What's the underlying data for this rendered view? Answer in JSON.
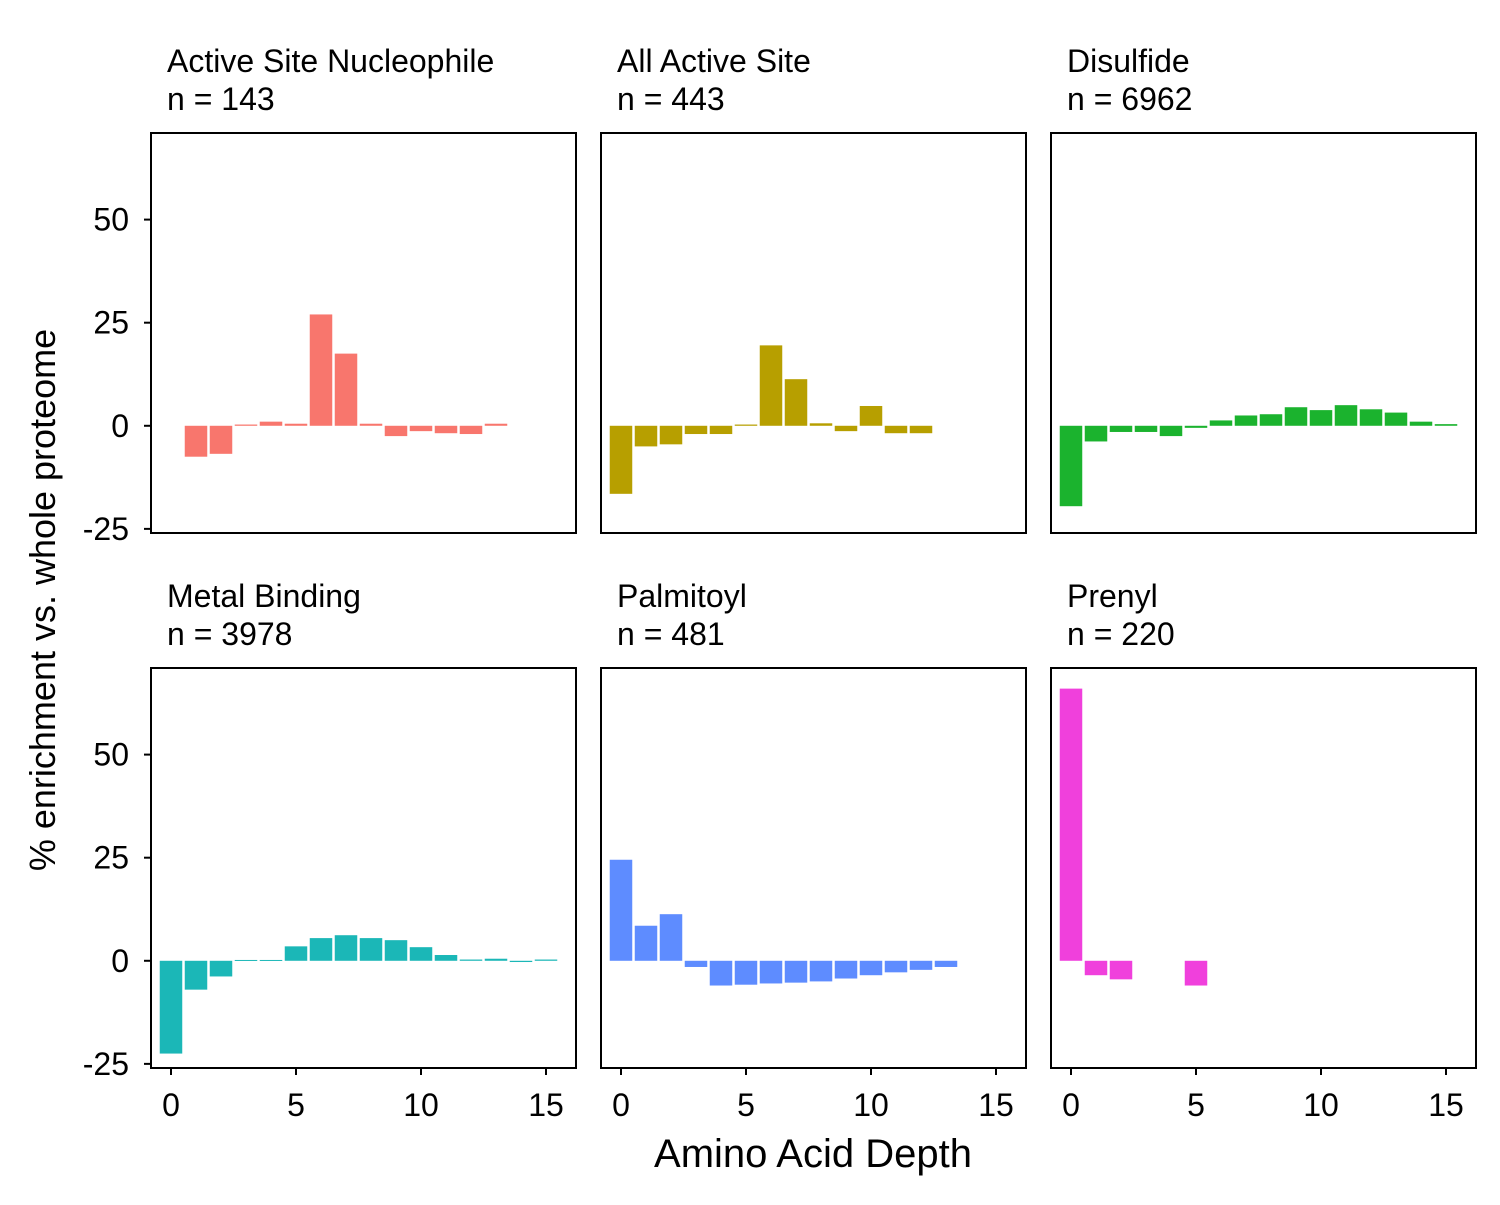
{
  "chart_data": {
    "type": "bar",
    "layout": "facet-grid-2x3",
    "xlabel": "Amino Acid Depth",
    "ylabel": "% enrichment vs. whole proteome",
    "xlim": [
      -0.8,
      16.2
    ],
    "ylim": [
      -26,
      71
    ],
    "xticks": [
      0,
      5,
      10,
      15
    ],
    "yticks": [
      -25,
      0,
      25,
      50
    ],
    "grid": false,
    "legend": "none",
    "panels": [
      {
        "title": "Active Site Nucleophile",
        "subtitle": "n = 143",
        "color": "#F8766D",
        "x": [
          1,
          2,
          3,
          4,
          5,
          6,
          7,
          8,
          9,
          10,
          11,
          12,
          13
        ],
        "values": [
          -7.5,
          -6.8,
          0.3,
          1.0,
          0.5,
          27.0,
          17.5,
          0.5,
          -2.5,
          -1.3,
          -1.8,
          -2.0,
          0.5
        ]
      },
      {
        "title": "All Active Site",
        "subtitle": "n = 443",
        "color": "#B79F00",
        "x": [
          0,
          1,
          2,
          3,
          4,
          5,
          6,
          7,
          8,
          9,
          10,
          11,
          12
        ],
        "values": [
          -16.5,
          -5.0,
          -4.5,
          -2.0,
          -2.0,
          0.3,
          19.5,
          11.3,
          0.6,
          -1.3,
          4.8,
          -1.8,
          -1.8
        ]
      },
      {
        "title": "Disulfide",
        "subtitle": "n = 6962",
        "color": "#1BB32E",
        "x": [
          0,
          1,
          2,
          3,
          4,
          5,
          6,
          7,
          8,
          9,
          10,
          11,
          12,
          13,
          14,
          15
        ],
        "values": [
          -19.5,
          -3.8,
          -1.5,
          -1.5,
          -2.5,
          -0.5,
          1.3,
          2.5,
          2.8,
          4.5,
          3.8,
          5.0,
          4.0,
          3.2,
          1.0,
          0.4
        ]
      },
      {
        "title": "Metal Binding",
        "subtitle": "n = 3978",
        "color": "#1BB7B7",
        "x": [
          0,
          1,
          2,
          3,
          4,
          5,
          6,
          7,
          8,
          9,
          10,
          11,
          12,
          13,
          14,
          15
        ],
        "values": [
          -22.5,
          -7.0,
          -3.8,
          0.2,
          0.2,
          3.5,
          5.5,
          6.2,
          5.5,
          5.0,
          3.3,
          1.4,
          0.3,
          0.5,
          -0.3,
          0.3
        ]
      },
      {
        "title": "Palmitoyl",
        "subtitle": "n = 481",
        "color": "#5E8CFF",
        "x": [
          0,
          1,
          2,
          3,
          4,
          5,
          6,
          7,
          8,
          9,
          10,
          11,
          12,
          13
        ],
        "values": [
          24.5,
          8.5,
          11.3,
          -1.5,
          -6.0,
          -5.8,
          -5.5,
          -5.3,
          -5.0,
          -4.3,
          -3.5,
          -2.8,
          -2.2,
          -1.5
        ]
      },
      {
        "title": "Prenyl",
        "subtitle": "n = 220",
        "color": "#F040DC",
        "x": [
          0,
          1,
          2,
          5
        ],
        "values": [
          66.0,
          -3.5,
          -4.5,
          -6.0
        ]
      }
    ]
  }
}
